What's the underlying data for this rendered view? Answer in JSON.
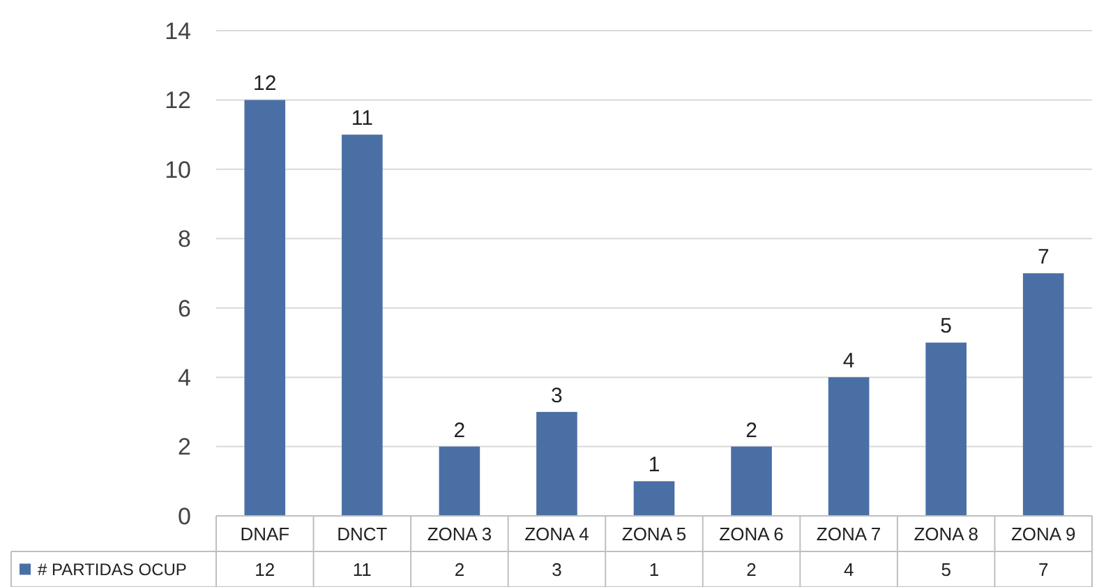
{
  "chart_data": {
    "type": "bar",
    "categories": [
      "DNAF",
      "DNCT",
      "ZONA 3",
      "ZONA 4",
      "ZONA 5",
      "ZONA 6",
      "ZONA 7",
      "ZONA 8",
      "ZONA 9"
    ],
    "series": [
      {
        "name": "# PARTIDAS OCUP",
        "color": "#4a6fa5",
        "values": [
          12,
          11,
          2,
          3,
          1,
          2,
          4,
          5,
          7
        ],
        "value_labels": [
          "12",
          "11",
          "2",
          "3",
          "1",
          "2",
          "4",
          "5",
          "7"
        ]
      }
    ],
    "ylim": [
      0,
      14
    ],
    "yticks": [
      0,
      2,
      4,
      6,
      8,
      10,
      12,
      14
    ],
    "grid": "y",
    "legend": "bottom",
    "annotations": [
      "12",
      "11",
      "2",
      "3",
      "1",
      "2",
      "4",
      "5",
      "7"
    ]
  }
}
